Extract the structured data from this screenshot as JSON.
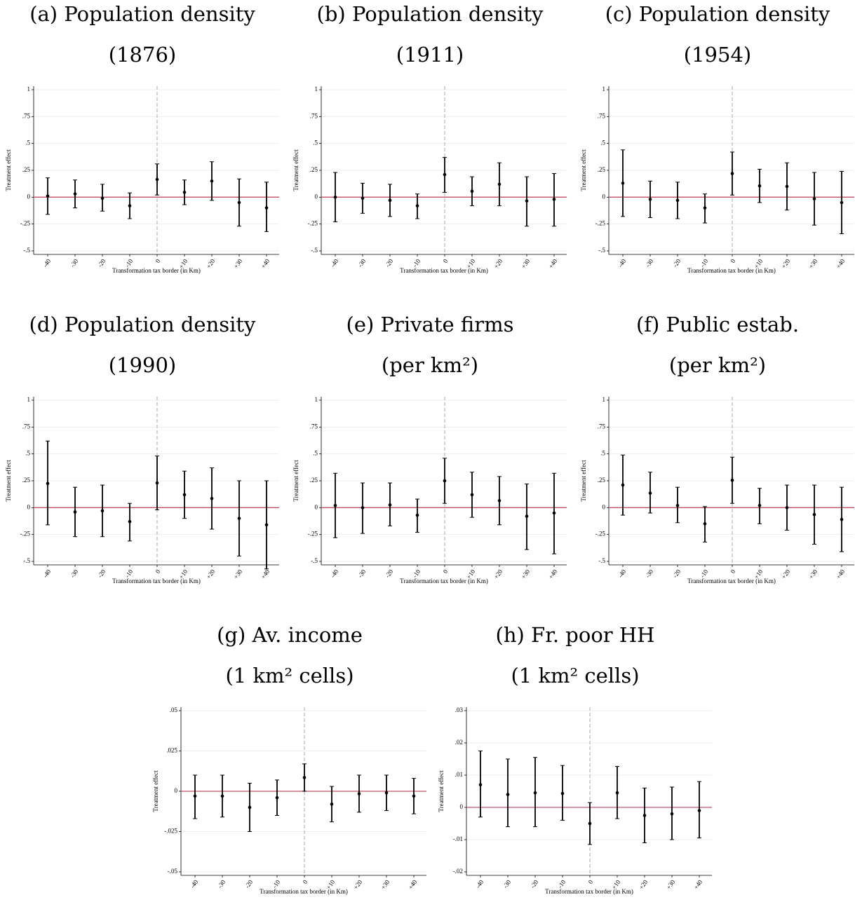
{
  "chart_data": [
    {
      "type": "errorbar",
      "title": "(a) Population density",
      "subtitle": "(1876)",
      "xlabel": "Transformation tax border (in Km)",
      "ylabel": "Treatment effect",
      "categories": [
        "-40",
        "-30",
        "-20",
        "-10",
        "0",
        "+10",
        "+20",
        "+30",
        "+40"
      ],
      "values": [
        0.01,
        0.03,
        -0.01,
        -0.08,
        0.165,
        0.045,
        0.15,
        -0.05,
        -0.1
      ],
      "lower": [
        -0.16,
        -0.1,
        -0.13,
        -0.2,
        0.02,
        -0.07,
        -0.03,
        -0.27,
        -0.32
      ],
      "upper": [
        0.18,
        0.16,
        0.12,
        0.04,
        0.31,
        0.16,
        0.33,
        0.17,
        0.14
      ],
      "ylim": [
        -0.5,
        1
      ],
      "yticks": [
        {
          "value": -0.5,
          "label": "-.5"
        },
        {
          "value": -0.25,
          "label": "-.25"
        },
        0,
        {
          "value": 0.25,
          "label": ".25"
        },
        {
          "value": 0.5,
          "label": ".5"
        },
        {
          "value": 0.75,
          "label": ".75"
        },
        1
      ],
      "color": "#000000",
      "grid": true,
      "hline": 0,
      "hline_color": "#c0506a",
      "vline": "0",
      "vline_color": "#aaaaaa"
    },
    {
      "type": "errorbar",
      "title": "(b) Population density",
      "subtitle": "(1911)",
      "xlabel": "Transformation tax border (in Km)",
      "ylabel": "Treatment effect",
      "categories": [
        "-40",
        "-30",
        "-20",
        "-10",
        "0",
        "+10",
        "+20",
        "+30",
        "+40"
      ],
      "values": [
        0,
        -0.01,
        -0.03,
        -0.08,
        0.21,
        0.055,
        0.12,
        -0.035,
        -0.02
      ],
      "lower": [
        -0.23,
        -0.15,
        -0.18,
        -0.2,
        0.045,
        -0.08,
        -0.08,
        -0.27,
        -0.27
      ],
      "upper": [
        0.23,
        0.13,
        0.12,
        0.03,
        0.37,
        0.19,
        0.32,
        0.19,
        0.22
      ],
      "ylim": [
        -0.5,
        1
      ],
      "yticks": [
        {
          "value": -0.5,
          "label": "-.5"
        },
        {
          "value": -0.25,
          "label": "-.25"
        },
        0,
        {
          "value": 0.25,
          "label": ".25"
        },
        {
          "value": 0.5,
          "label": ".5"
        },
        {
          "value": 0.75,
          "label": ".75"
        },
        1
      ],
      "color": "#000000",
      "grid": true,
      "hline": 0,
      "hline_color": "#c0506a",
      "vline": "0",
      "vline_color": "#aaaaaa"
    },
    {
      "type": "errorbar",
      "title": "(c) Population density",
      "subtitle": "(1954)",
      "xlabel": "Transformation tax border (in Km)",
      "ylabel": "Treatment effect",
      "categories": [
        "-40",
        "-30",
        "-20",
        "-10",
        "0",
        "+10",
        "+20",
        "+30",
        "+40"
      ],
      "values": [
        0.13,
        -0.02,
        -0.03,
        -0.1,
        0.22,
        0.105,
        0.1,
        -0.015,
        -0.05
      ],
      "lower": [
        -0.18,
        -0.19,
        -0.2,
        -0.24,
        0.02,
        -0.05,
        -0.12,
        -0.26,
        -0.34
      ],
      "upper": [
        0.44,
        0.15,
        0.14,
        0.03,
        0.42,
        0.26,
        0.32,
        0.23,
        0.24
      ],
      "ylim": [
        -0.5,
        1
      ],
      "yticks": [
        {
          "value": -0.5,
          "label": "-.5"
        },
        {
          "value": -0.25,
          "label": "-.25"
        },
        0,
        {
          "value": 0.25,
          "label": ".25"
        },
        {
          "value": 0.5,
          "label": ".5"
        },
        {
          "value": 0.75,
          "label": ".75"
        },
        1
      ],
      "color": "#000000",
      "grid": true,
      "hline": 0,
      "hline_color": "#c0506a",
      "vline": "0",
      "vline_color": "#aaaaaa"
    },
    {
      "type": "errorbar",
      "title": "(d) Population density",
      "subtitle": "(1990)",
      "xlabel": "Transformation tax border (in Km)",
      "ylabel": "Treatment effect",
      "categories": [
        "-40",
        "-30",
        "-20",
        "-10",
        "0",
        "+10",
        "+20",
        "+30",
        "+40"
      ],
      "values": [
        0.225,
        -0.04,
        -0.03,
        -0.13,
        0.23,
        0.12,
        0.085,
        -0.1,
        -0.16
      ],
      "lower": [
        -0.16,
        -0.27,
        -0.27,
        -0.31,
        -0.02,
        -0.1,
        -0.2,
        -0.45,
        -0.57
      ],
      "upper": [
        0.62,
        0.19,
        0.21,
        0.04,
        0.48,
        0.34,
        0.37,
        0.25,
        0.25
      ],
      "ylim": [
        -0.5,
        1
      ],
      "yticks": [
        {
          "value": -0.5,
          "label": "-.5"
        },
        {
          "value": -0.25,
          "label": "-.25"
        },
        0,
        {
          "value": 0.25,
          "label": ".25"
        },
        {
          "value": 0.5,
          "label": ".5"
        },
        {
          "value": 0.75,
          "label": ".75"
        },
        1
      ],
      "color": "#000000",
      "grid": true,
      "hline": 0,
      "hline_color": "#c0506a",
      "vline": "0",
      "vline_color": "#aaaaaa"
    },
    {
      "type": "errorbar",
      "title": "(e) Private firms",
      "subtitle": "(per km²)",
      "xlabel": "Transformation tax border (in Km)",
      "ylabel": "Treatment effect",
      "categories": [
        "-40",
        "-30",
        "-20",
        "-10",
        "0",
        "+10",
        "+20",
        "+30",
        "+40"
      ],
      "values": [
        0.02,
        0,
        0.025,
        -0.07,
        0.25,
        0.12,
        0.065,
        -0.08,
        -0.05
      ],
      "lower": [
        -0.28,
        -0.24,
        -0.17,
        -0.23,
        0.04,
        -0.09,
        -0.16,
        -0.39,
        -0.43
      ],
      "upper": [
        0.32,
        0.23,
        0.23,
        0.08,
        0.46,
        0.33,
        0.29,
        0.22,
        0.32
      ],
      "ylim": [
        -0.5,
        1
      ],
      "yticks": [
        {
          "value": -0.5,
          "label": "-.5"
        },
        {
          "value": -0.25,
          "label": "-.25"
        },
        0,
        {
          "value": 0.25,
          "label": ".25"
        },
        {
          "value": 0.5,
          "label": ".5"
        },
        {
          "value": 0.75,
          "label": ".75"
        },
        1
      ],
      "color": "#000000",
      "grid": true,
      "hline": 0,
      "hline_color": "#c0506a",
      "vline": "0",
      "vline_color": "#aaaaaa"
    },
    {
      "type": "errorbar",
      "title": "(f) Public estab.",
      "subtitle": "(per km²)",
      "xlabel": "Transformation tax border (in Km)",
      "ylabel": "Treatment effect",
      "categories": [
        "-40",
        "-30",
        "-20",
        "-10",
        "0",
        "+10",
        "+20",
        "+30",
        "+40"
      ],
      "values": [
        0.21,
        0.135,
        0.02,
        -0.15,
        0.255,
        0.02,
        0,
        -0.065,
        -0.11
      ],
      "lower": [
        -0.07,
        -0.05,
        -0.14,
        -0.32,
        0.04,
        -0.15,
        -0.21,
        -0.34,
        -0.41
      ],
      "upper": [
        0.49,
        0.33,
        0.19,
        0.01,
        0.47,
        0.18,
        0.21,
        0.21,
        0.19
      ],
      "ylim": [
        -0.5,
        1
      ],
      "yticks": [
        {
          "value": -0.5,
          "label": "-.5"
        },
        {
          "value": -0.25,
          "label": "-.25"
        },
        0,
        {
          "value": 0.25,
          "label": ".25"
        },
        {
          "value": 0.5,
          "label": ".5"
        },
        {
          "value": 0.75,
          "label": ".75"
        },
        1
      ],
      "color": "#000000",
      "grid": true,
      "hline": 0,
      "hline_color": "#c0506a",
      "vline": "0",
      "vline_color": "#aaaaaa"
    },
    {
      "type": "errorbar",
      "title": "(g) Av. income",
      "subtitle": "(1 km² cells)",
      "xlabel": "Transformation tax border (in Km)",
      "ylabel": "Treatment effect",
      "categories": [
        "-40",
        "-30",
        "-20",
        "-10",
        "0",
        "+10",
        "+20",
        "+30",
        "+40"
      ],
      "values": [
        -0.003,
        -0.003,
        -0.01,
        -0.004,
        0.0085,
        -0.008,
        -0.0015,
        -0.001,
        -0.003
      ],
      "lower": [
        -0.017,
        -0.016,
        -0.025,
        -0.015,
        0,
        -0.019,
        -0.013,
        -0.012,
        -0.014
      ],
      "upper": [
        0.01,
        0.01,
        0.005,
        0.007,
        0.017,
        0.003,
        0.01,
        0.01,
        0.008
      ],
      "ylim": [
        -0.05,
        0.05
      ],
      "yticks": [
        {
          "value": -0.05,
          "label": "-.05"
        },
        {
          "value": -0.025,
          "label": "-.025"
        },
        0,
        {
          "value": 0.025,
          "label": ".025"
        },
        {
          "value": 0.05,
          "label": ".05"
        }
      ],
      "color": "#000000",
      "grid": true,
      "hline": 0,
      "hline_color": "#c0506a",
      "vline": "0",
      "vline_color": "#aaaaaa"
    },
    {
      "type": "errorbar",
      "title": "(h) Fr. poor HH",
      "subtitle": "(1 km² cells)",
      "xlabel": "Transformation tax border (in Km)",
      "ylabel": "Treatment effect",
      "categories": [
        "-40",
        "-30",
        "-20",
        "-10",
        "0",
        "+10",
        "+20",
        "+30",
        "+40"
      ],
      "values": [
        0.007,
        0.004,
        0.0045,
        0.0043,
        -0.005,
        0.0045,
        -0.0025,
        -0.002,
        -0.001
      ],
      "lower": [
        -0.003,
        -0.006,
        -0.006,
        -0.004,
        -0.0115,
        -0.0035,
        -0.011,
        -0.01,
        -0.0095
      ],
      "upper": [
        0.0175,
        0.015,
        0.0155,
        0.013,
        0.0015,
        0.0127,
        0.006,
        0.0063,
        0.008
      ],
      "ylim": [
        -0.02,
        0.03
      ],
      "yticks": [
        {
          "value": -0.02,
          "label": "-.02"
        },
        {
          "value": -0.01,
          "label": "-.01"
        },
        0,
        {
          "value": 0.01,
          "label": ".01"
        },
        {
          "value": 0.02,
          "label": ".02"
        },
        {
          "value": 0.03,
          "label": ".03"
        }
      ],
      "color": "#000000",
      "grid": true,
      "hline": 0,
      "hline_color": "#c0506a",
      "vline": "0",
      "vline_color": "#aaaaaa"
    }
  ]
}
